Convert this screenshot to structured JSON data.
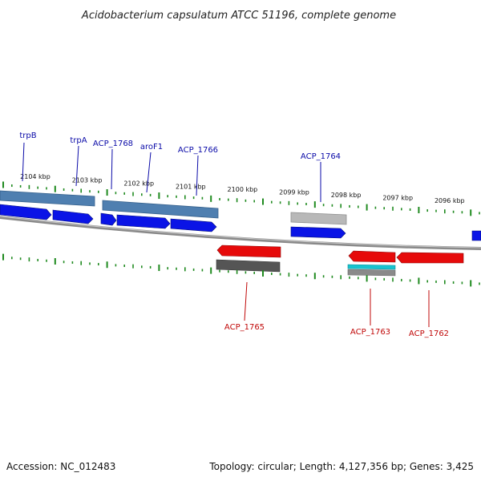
{
  "title": "Acidobacterium capsulatum ATCC 51196, complete genome",
  "footer": {
    "accession": "Accession: NC_012483",
    "topology": "Topology: circular; Length: 4,127,356 bp; Genes: 3,425"
  },
  "colors": {
    "forward_gene": "#0a14e6",
    "forward_gene_label": "#0a0aa8",
    "reverse_gene": "#e60a0a",
    "reverse_gene_label": "#c00808",
    "tick": "#1f8a1f",
    "cds_track_forward": "#4f7fb0",
    "backbone": "#888888"
  },
  "scale": {
    "unit": "kbp",
    "ticks": [
      {
        "label": "2104 kbp",
        "value": 2104
      },
      {
        "label": "2103 kbp",
        "value": 2103
      },
      {
        "label": "2102 kbp",
        "value": 2102
      },
      {
        "label": "2101 kbp",
        "value": 2101
      },
      {
        "label": "2100 kbp",
        "value": 2100
      },
      {
        "label": "2099 kbp",
        "value": 2099
      },
      {
        "label": "2098 kbp",
        "value": 2098
      },
      {
        "label": "2097 kbp",
        "value": 2097
      },
      {
        "label": "2096 kbp",
        "value": 2096
      }
    ]
  },
  "genes": [
    {
      "id": "trpB",
      "label": "trpB",
      "strand": "+"
    },
    {
      "id": "trpA",
      "label": "trpA",
      "strand": "+"
    },
    {
      "id": "ACP_1768",
      "label": "ACP_1768",
      "strand": "+"
    },
    {
      "id": "aroF1",
      "label": "aroF1",
      "strand": "+"
    },
    {
      "id": "ACP_1766",
      "label": "ACP_1766",
      "strand": "+"
    },
    {
      "id": "ACP_1765",
      "label": "ACP_1765",
      "strand": "-"
    },
    {
      "id": "ACP_1764",
      "label": "ACP_1764",
      "strand": "+"
    },
    {
      "id": "ACP_1763",
      "label": "ACP_1763",
      "strand": "-"
    },
    {
      "id": "ACP_1762",
      "label": "ACP_1762",
      "strand": "-"
    }
  ]
}
